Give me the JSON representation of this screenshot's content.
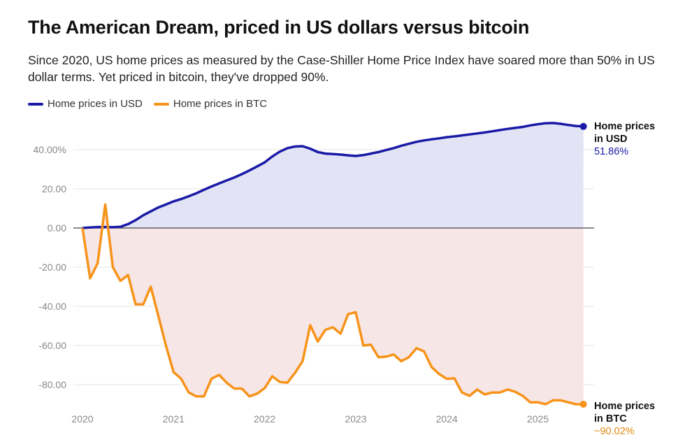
{
  "title": "The American Dream, priced in US dollars versus bitcoin",
  "subtitle": "Since 2020, US home prices as measured by the Case-Shiller Home Price Index have soared more than 50% in US dollar terms. Yet priced in bitcoin, they've dropped 90%.",
  "colors": {
    "usd": "#1a1aa6",
    "btc": "#f7931a",
    "usd_fill": "#e2e4f6",
    "btc_fill": "#f7e6e6"
  },
  "chart_data": {
    "type": "line",
    "title": "The American Dream, priced in US dollars versus bitcoin",
    "xlabel": "",
    "ylabel": "",
    "x_start": "2020-01",
    "x_step": "month",
    "xlim": [
      2020,
      2025.55
    ],
    "ylim": [
      -95,
      55
    ],
    "x_ticks": [
      "2020",
      "2021",
      "2022",
      "2023",
      "2024",
      "2025"
    ],
    "y_ticks": [
      {
        "v": 40,
        "label": "40.00%"
      },
      {
        "v": 20,
        "label": "20.00"
      },
      {
        "v": 0,
        "label": "0.00"
      },
      {
        "v": -20,
        "label": "-20.00"
      },
      {
        "v": -40,
        "label": "-40.00"
      },
      {
        "v": -60,
        "label": "-60.00"
      },
      {
        "v": -80,
        "label": "-80.00"
      }
    ],
    "legend_position": "top-left",
    "series": [
      {
        "name": "Home prices in USD",
        "end_label": [
          "Home prices",
          "in USD"
        ],
        "end_value": "51.86%",
        "values": [
          0,
          0.3,
          0.5,
          0.5,
          0.4,
          0.6,
          2,
          4,
          6.5,
          8.5,
          10.5,
          12,
          13.6,
          14.8,
          16.2,
          17.7,
          19.5,
          21.2,
          22.8,
          24.3,
          25.8,
          27.5,
          29.4,
          31.4,
          33.5,
          36.5,
          39,
          40.8,
          41.6,
          41.8,
          40.5,
          38.8,
          38,
          37.8,
          37.5,
          37.1,
          36.8,
          37.2,
          38,
          38.8,
          39.8,
          40.8,
          42,
          43,
          44,
          44.7,
          45.3,
          45.8,
          46.4,
          46.8,
          47.3,
          47.8,
          48.3,
          48.8,
          49.4,
          50,
          50.6,
          51.1,
          51.6,
          52.4,
          53,
          53.5,
          53.6,
          53.2,
          52.6,
          52.1,
          51.86
        ]
      },
      {
        "name": "Home prices in BTC",
        "end_label": [
          "Home prices",
          "in BTC"
        ],
        "end_value": "−90.02%",
        "values": [
          0,
          -25.7,
          -18,
          12,
          -20,
          -27,
          -24,
          -39,
          -39,
          -30,
          -45,
          -60,
          -73.6,
          -77,
          -84,
          -86,
          -86,
          -77,
          -75,
          -79,
          -82,
          -82,
          -86,
          -84.6,
          -81.8,
          -75.7,
          -78.6,
          -79,
          -74,
          -68,
          -49.6,
          -58,
          -52,
          -50.7,
          -54,
          -44,
          -43,
          -60,
          -59.6,
          -66,
          -65.7,
          -64.6,
          -68,
          -66,
          -61.4,
          -63,
          -71,
          -74.6,
          -77,
          -76.8,
          -84,
          -85.7,
          -82.5,
          -85,
          -84,
          -84,
          -82.5,
          -83.6,
          -85.7,
          -89,
          -89,
          -90,
          -88,
          -88,
          -89,
          -90,
          -90.02
        ]
      }
    ]
  }
}
